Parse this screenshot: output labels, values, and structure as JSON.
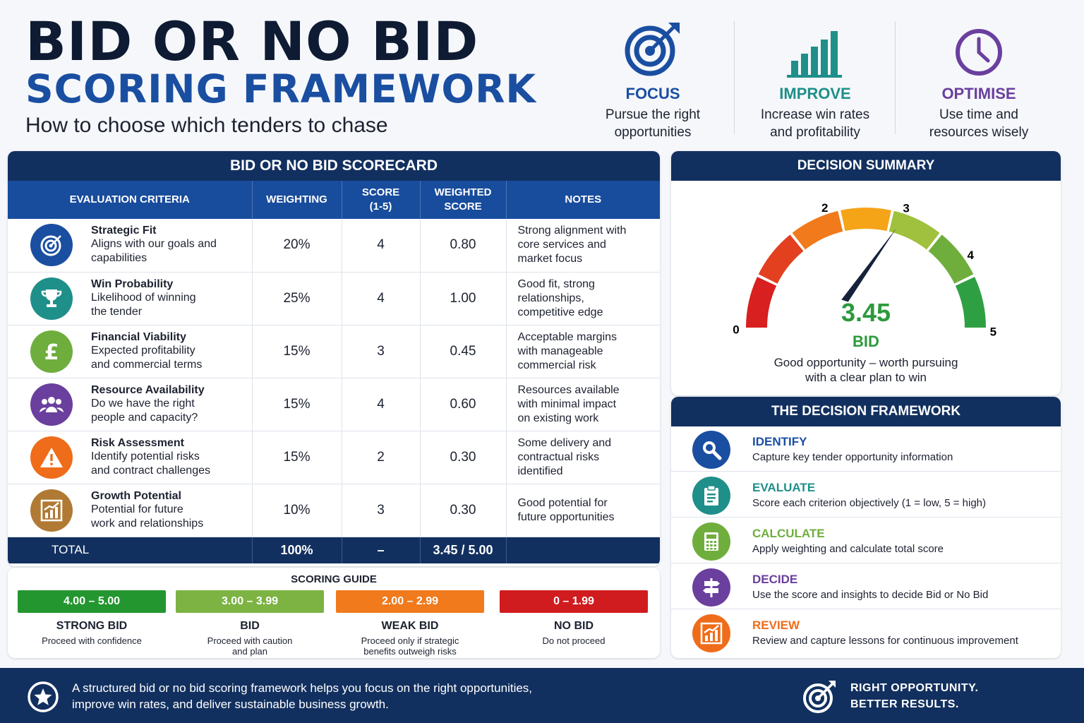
{
  "header": {
    "title_line1": "BID OR NO BID",
    "title_line2": "SCORING FRAMEWORK",
    "subtitle": "How to choose which tenders to chase"
  },
  "pillars": [
    {
      "title": "FOCUS",
      "line1": "Pursue the right",
      "line2": "opportunities",
      "color": "#1a4ea1",
      "icon": "target-icon"
    },
    {
      "title": "IMPROVE",
      "line1": "Increase win rates",
      "line2": "and profitability",
      "color": "#1f8f8a",
      "icon": "bar-chart-icon"
    },
    {
      "title": "OPTIMISE",
      "line1": "Use time and",
      "line2": "resources wisely",
      "color": "#6a3f9e",
      "icon": "clock-icon"
    }
  ],
  "scorecard": {
    "title": "BID OR NO BID SCORECARD",
    "headers": {
      "criteria": "EVALUATION CRITERIA",
      "weighting": "WEIGHTING",
      "score_l1": "SCORE",
      "score_l2": "(1-5)",
      "weighted_l1": "WEIGHTED",
      "weighted_l2": "SCORE",
      "notes": "NOTES"
    },
    "rows": [
      {
        "name": "Strategic Fit",
        "d1": "Aligns with our goals and",
        "d2": "capabilities",
        "weighting": "20%",
        "score": "4",
        "weighted": "0.80",
        "n1": "Strong alignment with",
        "n2": "core services and",
        "n3": "market focus",
        "icon": "target-icon",
        "color": "#1a4ea1"
      },
      {
        "name": "Win Probability",
        "d1": "Likelihood of winning",
        "d2": "the tender",
        "weighting": "25%",
        "score": "4",
        "weighted": "1.00",
        "n1": "Good fit, strong",
        "n2": "relationships,",
        "n3": "competitive edge",
        "icon": "trophy-icon",
        "color": "#1f8f8a"
      },
      {
        "name": "Financial Viability",
        "d1": "Expected profitability",
        "d2": "and commercial terms",
        "weighting": "15%",
        "score": "3",
        "weighted": "0.45",
        "n1": "Acceptable margins",
        "n2": "with manageable",
        "n3": "commercial risk",
        "icon": "pound-icon",
        "color": "#6fae3d"
      },
      {
        "name": "Resource Availability",
        "d1": "Do we have the right",
        "d2": "people and capacity?",
        "weighting": "15%",
        "score": "4",
        "weighted": "0.60",
        "n1": "Resources available",
        "n2": "with minimal impact",
        "n3": "on existing work",
        "icon": "people-icon",
        "color": "#6a3f9e"
      },
      {
        "name": "Risk Assessment",
        "d1": "Identify potential risks",
        "d2": "and contract challenges",
        "weighting": "15%",
        "score": "2",
        "weighted": "0.30",
        "n1": "Some delivery and",
        "n2": "contractual risks",
        "n3": "identified",
        "icon": "warning-icon",
        "color": "#ef6c1a"
      },
      {
        "name": "Growth Potential",
        "d1": "Potential for future",
        "d2": "work and relationships",
        "weighting": "10%",
        "score": "3",
        "weighted": "0.30",
        "n1": "Good potential for",
        "n2": "future opportunities",
        "n3": "",
        "icon": "growth-chart-icon",
        "color": "#b07a35"
      }
    ],
    "total": {
      "label": "TOTAL",
      "weighting": "100%",
      "score": "–",
      "weighted": "3.45 / 5.00"
    }
  },
  "scoring_guide": {
    "title": "SCORING GUIDE",
    "bands": [
      {
        "range": "4.00 – 5.00",
        "label": "STRONG BID",
        "d1": "Proceed with confidence",
        "d2": "",
        "color": "#24962f"
      },
      {
        "range": "3.00 – 3.99",
        "label": "BID",
        "d1": "Proceed with caution",
        "d2": "and plan",
        "color": "#7cb342"
      },
      {
        "range": "2.00 – 2.99",
        "label": "WEAK BID",
        "d1": "Proceed only if strategic",
        "d2": "benefits outweigh risks",
        "color": "#f07a1c"
      },
      {
        "range": "0 – 1.99",
        "label": "NO BID",
        "d1": "Do not proceed",
        "d2": "",
        "color": "#d01c1f"
      }
    ]
  },
  "decision_summary": {
    "title": "DECISION SUMMARY",
    "gauge_labels": [
      "0",
      "2",
      "3",
      "4",
      "5"
    ],
    "score": 3.45,
    "score_text": "3.45",
    "verdict": "BID",
    "desc1": "Good opportunity – worth pursuing",
    "desc2": "with a clear plan to win"
  },
  "framework": {
    "title": "THE DECISION FRAMEWORK",
    "steps": [
      {
        "name": "IDENTIFY",
        "desc": "Capture key tender opportunity information",
        "color": "#1a4ea1",
        "icon": "magnifier-icon"
      },
      {
        "name": "EVALUATE",
        "desc": "Score each criterion objectively (1 = low, 5 = high)",
        "color": "#1f8f8a",
        "icon": "clipboard-icon"
      },
      {
        "name": "CALCULATE",
        "desc": "Apply weighting and calculate total score",
        "color": "#6fae3d",
        "icon": "calculator-icon"
      },
      {
        "name": "DECIDE",
        "desc": "Use the score and insights to decide Bid or No Bid",
        "color": "#6a3f9e",
        "icon": "signpost-icon"
      },
      {
        "name": "REVIEW",
        "desc": "Review and capture lessons for continuous improvement",
        "color": "#ef6c1a",
        "icon": "growth-chart-icon"
      }
    ]
  },
  "footer": {
    "line1": "A structured bid or no bid scoring framework helps you focus on the right opportunities,",
    "line2": "improve win rates, and deliver sustainable business growth.",
    "tag1": "RIGHT OPPORTUNITY.",
    "tag2": "BETTER RESULTS."
  }
}
